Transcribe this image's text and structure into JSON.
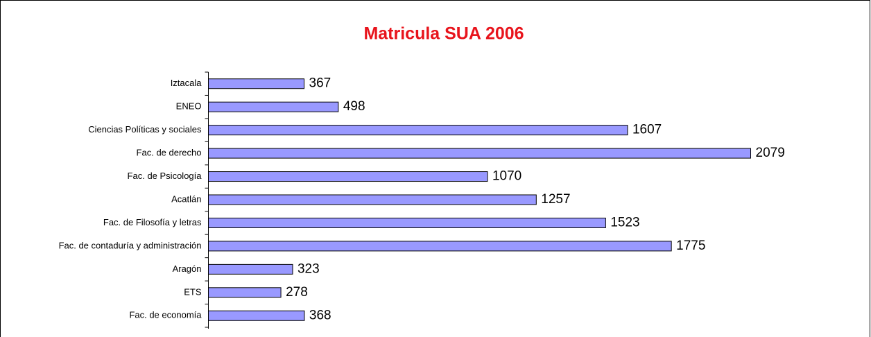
{
  "chart_data": {
    "type": "bar",
    "orientation": "horizontal",
    "title": "Matricula SUA 2006",
    "categories": [
      "Iztacala",
      "ENEO",
      "Ciencias Políticas y sociales",
      "Fac. de derecho",
      "Fac. de Psicología",
      "Acatlán",
      "Fac. de Filosofía y letras",
      "Fac. de contaduría y administración",
      "Aragón",
      "ETS",
      "Fac. de economía"
    ],
    "values": [
      367,
      498,
      1607,
      2079,
      1070,
      1257,
      1523,
      1775,
      323,
      278,
      368
    ],
    "color": "#9999ff",
    "title_color": "#e8141c"
  }
}
